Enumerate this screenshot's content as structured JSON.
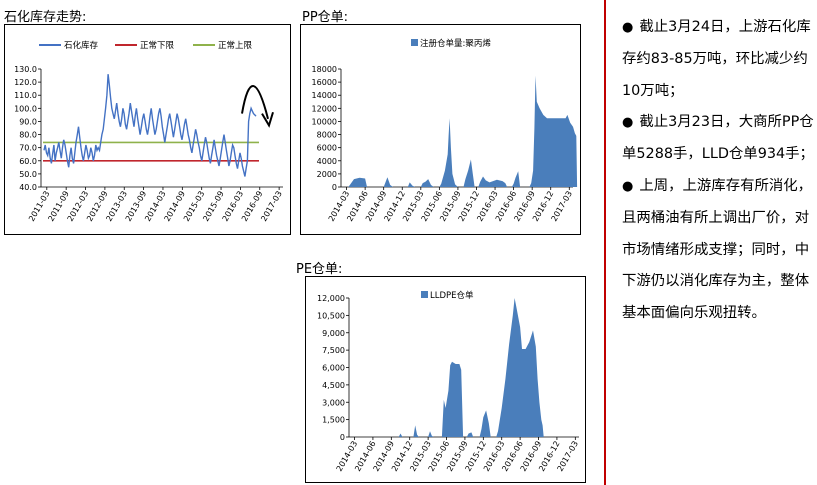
{
  "titles": {
    "petro": "石化库存走势:",
    "pp": "PP仓单:",
    "pe": "PE仓单:"
  },
  "notes": [
    {
      "bullet": "●",
      "text": "截止3月24日，上游石化库存约83-85万吨，环比减少约10万吨；"
    },
    {
      "bullet": "●",
      "text": "截止3月23日，大商所PP仓单5288手，LLD仓单934手；"
    },
    {
      "bullet": "●",
      "text": "上周，上游库存有所消化，且两桶油有所上调出厂价，对市场情绪形成支撑；同时，中下游仍以消化库存为主，整体基本面偏向乐观扭转。"
    }
  ],
  "colors": {
    "divider": "#c00000",
    "series_blue": "#4472c4",
    "fill_blue": "#4a7ebb",
    "lower_red": "#c0262d",
    "upper_green": "#8fb24b"
  },
  "chart_data": [
    {
      "id": "petro",
      "type": "line",
      "legend": [
        "石化库存",
        "正常下限",
        "正常上限"
      ],
      "legend_position": "top",
      "ylim": [
        40,
        130
      ],
      "yticks": [
        "40.0",
        "50.0",
        "60.0",
        "70.0",
        "80.0",
        "90.0",
        "100.0",
        "110.0",
        "120.0",
        "130.0"
      ],
      "xticks": [
        "2011-03",
        "2011-09",
        "2012-03",
        "2012-09",
        "2013-03",
        "2013-09",
        "2014-03",
        "2014-09",
        "2015-03",
        "2015-09",
        "2016-03",
        "2016-09",
        "2017-03"
      ],
      "lower_limit": 60,
      "upper_limit": 74,
      "series": [
        {
          "name": "石化库存",
          "values": [
            68,
            72,
            66,
            64,
            70,
            62,
            58,
            65,
            72,
            60,
            66,
            70,
            74,
            68,
            62,
            70,
            76,
            72,
            66,
            60,
            55,
            64,
            70,
            62,
            58,
            66,
            74,
            80,
            86,
            78,
            70,
            64,
            60,
            66,
            72,
            68,
            62,
            64,
            70,
            66,
            60,
            64,
            72,
            68,
            70,
            68,
            74,
            80,
            84,
            92,
            100,
            110,
            126,
            118,
            108,
            100,
            96,
            92,
            98,
            104,
            96,
            90,
            86,
            92,
            100,
            96,
            88,
            84,
            90,
            96,
            104,
            98,
            92,
            86,
            94,
            100,
            92,
            86,
            80,
            86,
            92,
            96,
            90,
            84,
            80,
            86,
            94,
            100,
            92,
            86,
            80,
            84,
            90,
            96,
            100,
            94,
            86,
            80,
            74,
            80,
            86,
            92,
            96,
            90,
            84,
            78,
            84,
            90,
            96,
            92,
            86,
            80,
            76,
            82,
            88,
            92,
            86,
            80,
            76,
            70,
            66,
            72,
            78,
            84,
            80,
            74,
            70,
            64,
            60,
            66,
            72,
            78,
            74,
            68,
            62,
            58,
            64,
            70,
            76,
            70,
            64,
            60,
            56,
            62,
            68,
            74,
            80,
            74,
            68,
            62,
            56,
            60,
            66,
            72,
            70,
            64,
            58,
            54,
            60,
            66,
            62,
            56,
            52,
            48,
            54,
            60,
            90,
            96,
            100,
            98,
            96,
            95,
            94
          ]
        }
      ],
      "annotation": "down-arrow"
    },
    {
      "id": "pp",
      "type": "area",
      "legend": [
        "注册仓单量:聚丙烯"
      ],
      "legend_position": "top",
      "ylim": [
        0,
        18000
      ],
      "yticks": [
        "0",
        "2000",
        "4000",
        "6000",
        "8000",
        "10000",
        "12000",
        "14000",
        "16000",
        "18000"
      ],
      "xticks": [
        "2014-03",
        "2014-06",
        "2014-09",
        "2014-12",
        "2015-03",
        "2015-06",
        "2015-09",
        "2015-12",
        "2016-03",
        "2016-06",
        "2016-09",
        "2016-12",
        "2017-03"
      ],
      "values": [
        [
          0.1,
          0
        ],
        [
          0.4,
          1200
        ],
        [
          0.7,
          1400
        ],
        [
          1.0,
          1300
        ],
        [
          1.1,
          0
        ],
        [
          2.0,
          0
        ],
        [
          2.2,
          1500
        ],
        [
          2.35,
          300
        ],
        [
          2.5,
          0
        ],
        [
          3.3,
          0
        ],
        [
          3.4,
          700
        ],
        [
          3.55,
          200
        ],
        [
          3.7,
          0
        ],
        [
          4.0,
          0
        ],
        [
          4.1,
          600
        ],
        [
          4.25,
          800
        ],
        [
          4.4,
          1200
        ],
        [
          4.55,
          300
        ],
        [
          4.7,
          0
        ],
        [
          5.0,
          0
        ],
        [
          5.1,
          500
        ],
        [
          5.3,
          2500
        ],
        [
          5.45,
          5000
        ],
        [
          5.5,
          7800
        ],
        [
          5.55,
          10500
        ],
        [
          5.62,
          6000
        ],
        [
          5.7,
          2000
        ],
        [
          5.85,
          400
        ],
        [
          6.0,
          0
        ],
        [
          6.3,
          0
        ],
        [
          6.4,
          1200
        ],
        [
          6.55,
          2500
        ],
        [
          6.7,
          4200
        ],
        [
          6.8,
          2000
        ],
        [
          6.9,
          0
        ],
        [
          7.1,
          0
        ],
        [
          7.2,
          800
        ],
        [
          7.35,
          1600
        ],
        [
          7.5,
          1000
        ],
        [
          7.7,
          700
        ],
        [
          8.1,
          1100
        ],
        [
          8.4,
          900
        ],
        [
          8.55,
          600
        ],
        [
          8.65,
          0
        ],
        [
          8.9,
          0
        ],
        [
          9.0,
          500
        ],
        [
          9.1,
          1400
        ],
        [
          9.25,
          2400
        ],
        [
          9.35,
          0
        ],
        [
          9.85,
          0
        ],
        [
          9.95,
          600
        ],
        [
          10.05,
          2500
        ],
        [
          10.12,
          9000
        ],
        [
          10.18,
          17000
        ],
        [
          10.25,
          13000
        ],
        [
          10.4,
          12000
        ],
        [
          10.6,
          11000
        ],
        [
          10.8,
          10500
        ],
        [
          11.2,
          10500
        ],
        [
          11.6,
          10500
        ],
        [
          11.8,
          10500
        ],
        [
          11.9,
          11000
        ],
        [
          12.05,
          9800
        ],
        [
          12.2,
          9200
        ],
        [
          12.3,
          8200
        ],
        [
          12.38,
          7800
        ],
        [
          12.42,
          0
        ]
      ]
    },
    {
      "id": "pe",
      "type": "area",
      "legend": [
        "LLDPE仓单"
      ],
      "legend_position": "top",
      "ylim": [
        0,
        12000
      ],
      "yticks": [
        "0",
        "1,500",
        "3,000",
        "4,500",
        "6,000",
        "7,500",
        "9,000",
        "10,500",
        "12,000"
      ],
      "xticks": [
        "2014-03",
        "2014-06",
        "2014-09",
        "2014-12",
        "2015-03",
        "2015-06",
        "2015-09",
        "2015-12",
        "2016-03",
        "2016-06",
        "2016-09",
        "2016-12",
        "2017-03"
      ],
      "values": [
        [
          2.4,
          0
        ],
        [
          2.5,
          300
        ],
        [
          2.6,
          0
        ],
        [
          3.2,
          0
        ],
        [
          3.3,
          1000
        ],
        [
          3.4,
          200
        ],
        [
          3.5,
          0
        ],
        [
          4.0,
          0
        ],
        [
          4.1,
          500
        ],
        [
          4.2,
          100
        ],
        [
          4.3,
          0
        ],
        [
          4.75,
          0
        ],
        [
          4.85,
          3200
        ],
        [
          4.95,
          2500
        ],
        [
          5.1,
          4000
        ],
        [
          5.2,
          6200
        ],
        [
          5.3,
          6500
        ],
        [
          5.5,
          6300
        ],
        [
          5.7,
          6300
        ],
        [
          5.8,
          5800
        ],
        [
          5.9,
          0
        ],
        [
          6.1,
          0
        ],
        [
          6.2,
          300
        ],
        [
          6.35,
          400
        ],
        [
          6.45,
          0
        ],
        [
          6.8,
          0
        ],
        [
          6.9,
          700
        ],
        [
          7.0,
          1700
        ],
        [
          7.15,
          2300
        ],
        [
          7.3,
          1200
        ],
        [
          7.4,
          0
        ],
        [
          7.7,
          0
        ],
        [
          7.8,
          500
        ],
        [
          8.0,
          2500
        ],
        [
          8.2,
          5000
        ],
        [
          8.4,
          8000
        ],
        [
          8.6,
          10500
        ],
        [
          8.7,
          12000
        ],
        [
          8.8,
          11200
        ],
        [
          9.0,
          9500
        ],
        [
          9.1,
          7600
        ],
        [
          9.3,
          7600
        ],
        [
          9.5,
          8200
        ],
        [
          9.7,
          9200
        ],
        [
          9.85,
          7800
        ],
        [
          9.95,
          5000
        ],
        [
          10.05,
          3000
        ],
        [
          10.15,
          1500
        ],
        [
          10.22,
          1000
        ],
        [
          10.28,
          0
        ]
      ]
    }
  ]
}
